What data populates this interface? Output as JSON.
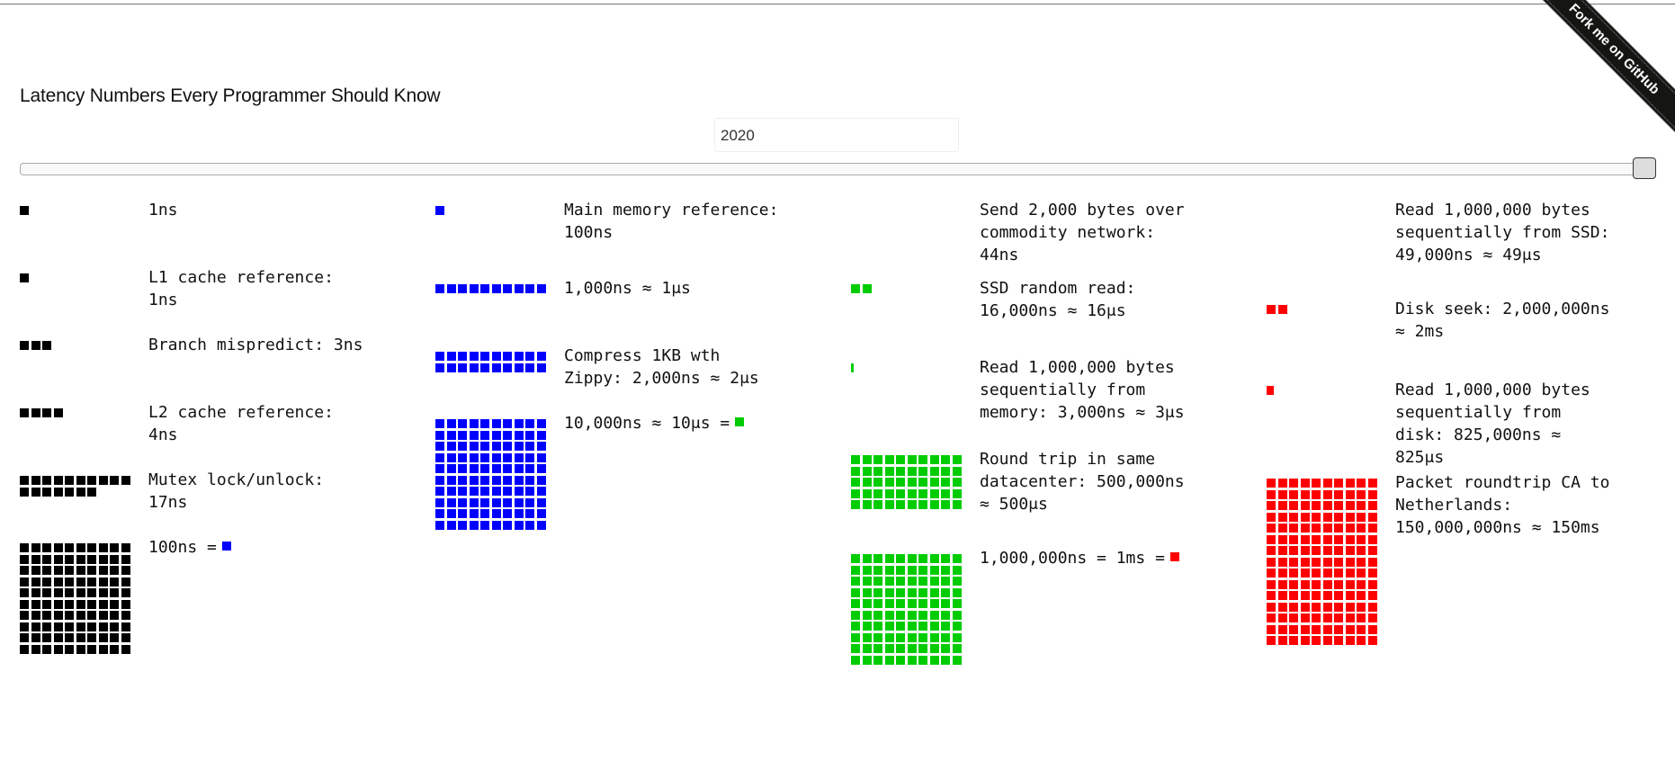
{
  "page": {
    "title": "Latency Numbers Every Programmer Should Know",
    "year": "2020",
    "ribbon_text": "Fork me on GitHub"
  },
  "colors": {
    "black": "#000000",
    "blue": "#0000ff",
    "green": "#00cc00",
    "red": "#ff0000"
  },
  "columns": [
    {
      "color": "#000000",
      "items": [
        {
          "id": "1ns",
          "label": "1ns",
          "blocks": 1
        },
        {
          "id": "l1",
          "label": "L1 cache reference: 1ns",
          "blocks": 1
        },
        {
          "id": "branch",
          "label": "Branch mispredict: 3ns",
          "blocks": 3
        },
        {
          "id": "l2",
          "label": "L2 cache reference: 4ns",
          "blocks": 4
        },
        {
          "id": "mutex",
          "label": "Mutex lock/unlock: 17ns",
          "blocks": 17
        },
        {
          "id": "100ns",
          "label": "100ns =",
          "blocks": 100,
          "legend_color": "#0000ff"
        }
      ]
    },
    {
      "color": "#0000ff",
      "items": [
        {
          "id": "mainmem",
          "label": "Main memory reference: 100ns",
          "blocks": 1
        },
        {
          "id": "1us",
          "label": "1,000ns ≈ 1μs",
          "blocks": 10
        },
        {
          "id": "zippy",
          "label": "Compress 1KB wth Zippy: 2,000ns ≈ 2μs",
          "blocks": 20
        },
        {
          "id": "10us",
          "label": "10,000ns ≈ 10μs =",
          "blocks": 100,
          "legend_color": "#00cc00"
        }
      ]
    },
    {
      "color": "#00cc00",
      "items": [
        {
          "id": "network",
          "label": "Send 2,000 bytes over commodity network: 44ns",
          "blocks": 0
        },
        {
          "id": "ssdrand",
          "label": "SSD random read: 16,000ns ≈ 16μs",
          "blocks": 2
        },
        {
          "id": "memseq",
          "label": "Read 1,000,000 bytes sequentially from memory: 3,000ns ≈ 3μs",
          "blocks": 0.3
        },
        {
          "id": "datacenter",
          "label": "Round trip in same datacenter: 500,000ns ≈ 500μs",
          "blocks": 50
        },
        {
          "id": "1ms",
          "label": "1,000,000ns = 1ms =",
          "blocks": 100,
          "legend_color": "#ff0000"
        }
      ]
    },
    {
      "color": "#ff0000",
      "items": [
        {
          "id": "ssdseq",
          "label": "Read 1,000,000 bytes sequentially from SSD: 49,000ns ≈ 49μs",
          "blocks": 0
        },
        {
          "id": "diskseek",
          "label": "Disk seek: 2,000,000ns ≈ 2ms",
          "blocks": 2
        },
        {
          "id": "diskseq",
          "label": "Read 1,000,000 bytes sequentially from disk: 825,000ns ≈ 825μs",
          "blocks": 0.8
        },
        {
          "id": "packet",
          "label": "Packet roundtrip CA to Netherlands: 150,000,000ns ≈ 150ms",
          "blocks": 150
        }
      ]
    }
  ]
}
